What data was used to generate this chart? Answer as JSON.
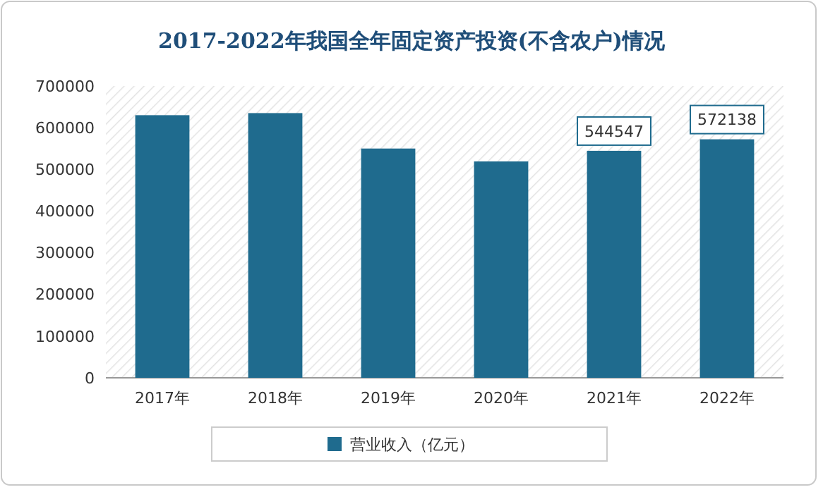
{
  "chart_data": {
    "type": "bar",
    "title": "2017-2022年我国全年固定资产投资(不含农户)情况",
    "categories": [
      "2017年",
      "2018年",
      "2019年",
      "2020年",
      "2021年",
      "2022年"
    ],
    "series": [
      {
        "name": "营业收入（亿元）",
        "color": "#1f6b8e",
        "values": [
          630000,
          635000,
          550000,
          519000,
          544547,
          572138
        ],
        "value_labels": [
          null,
          null,
          null,
          null,
          "544547",
          "572138"
        ]
      }
    ],
    "ylim": [
      0,
      700000
    ],
    "yticks": [
      0,
      100000,
      200000,
      300000,
      400000,
      500000,
      600000,
      700000
    ],
    "grid": false,
    "legend": "bottom"
  }
}
